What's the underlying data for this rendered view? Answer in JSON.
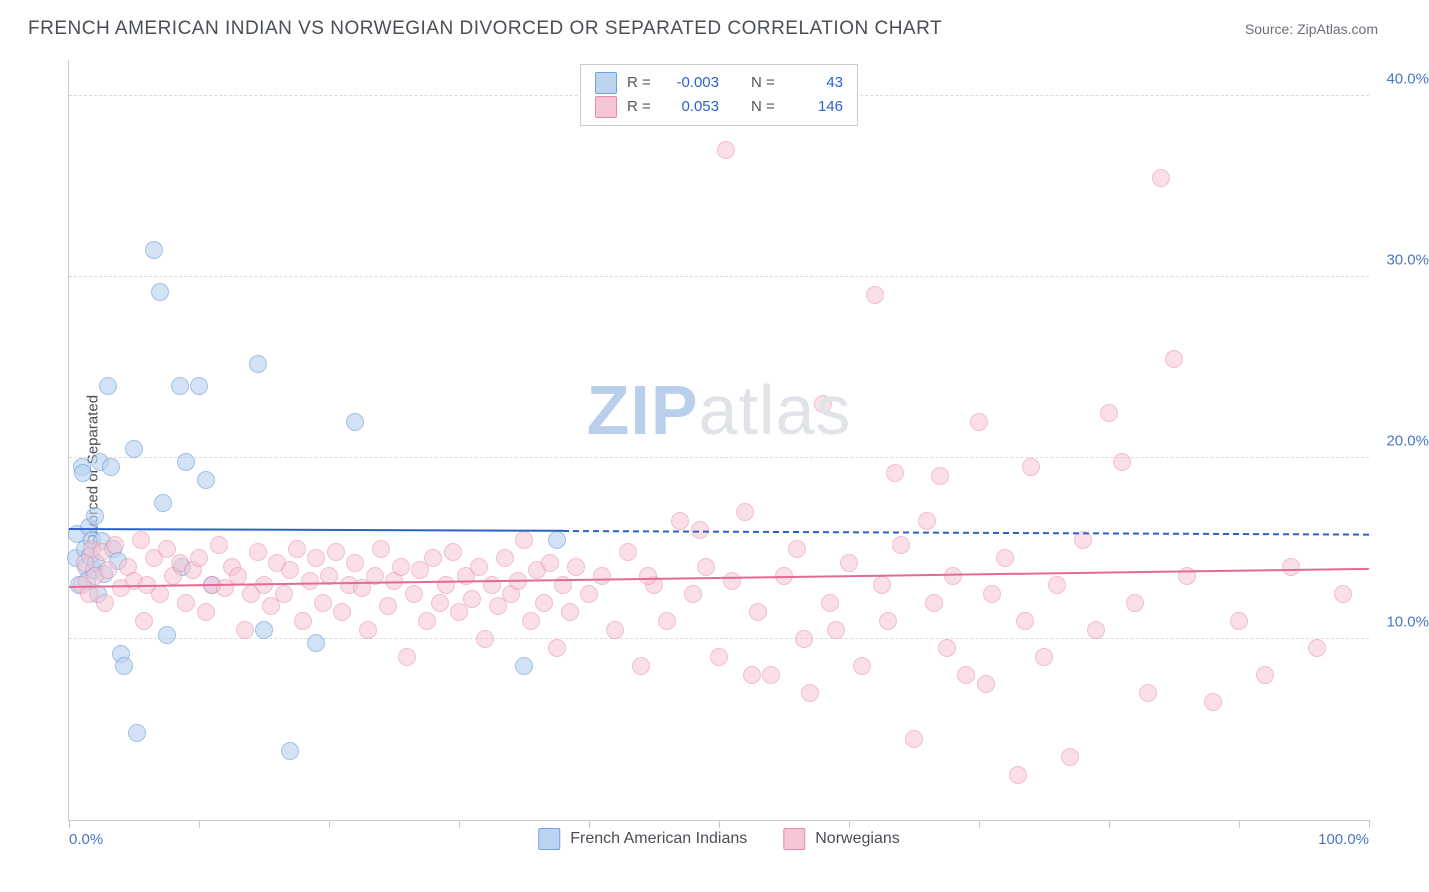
{
  "header": {
    "title": "FRENCH AMERICAN INDIAN VS NORWEGIAN DIVORCED OR SEPARATED CORRELATION CHART",
    "source_label": "Source:",
    "source_value": "ZipAtlas.com"
  },
  "chart": {
    "type": "scatter",
    "ylabel": "Divorced or Separated",
    "xlim": [
      0,
      100
    ],
    "ylim": [
      0,
      42
    ],
    "x_ticks": [
      0,
      10,
      20,
      30,
      40,
      50,
      60,
      70,
      80,
      90,
      100
    ],
    "y_ticks": [
      10,
      20,
      30,
      40
    ],
    "x_tick_labels": {
      "0": "0.0%",
      "100": "100.0%"
    },
    "y_tick_labels": {
      "10": "10.0%",
      "20": "20.0%",
      "30": "30.0%",
      "40": "40.0%"
    },
    "background_color": "#ffffff",
    "grid_color": "#d8dce2",
    "axis_color": "#c8ccd2",
    "tick_label_color": "#4a75c5",
    "marker_radius": 8,
    "watermark": {
      "part_a": "ZIP",
      "part_b": "atlas",
      "color_a": "#b9cfec",
      "color_b": "#e0e3e8"
    },
    "series": [
      {
        "id": "french_american_indians",
        "label": "French American Indians",
        "stats": {
          "R": "-0.003",
          "N": "43"
        },
        "fill": "#bcd4f0",
        "stroke": "#6fa1dd",
        "fill_opacity": 0.65,
        "trend": {
          "x1": 0,
          "y1": 16.0,
          "x2": 38,
          "y2": 15.9,
          "x2_dash": 100,
          "y2_dash": 15.7,
          "color": "#2a62c9"
        },
        "points": [
          [
            0.5,
            14.5
          ],
          [
            0.6,
            15.8
          ],
          [
            0.8,
            13.0
          ],
          [
            1.0,
            19.5
          ],
          [
            1.1,
            19.2
          ],
          [
            1.2,
            15.0
          ],
          [
            1.3,
            14.0
          ],
          [
            1.4,
            13.2
          ],
          [
            1.5,
            16.2
          ],
          [
            1.6,
            14.6
          ],
          [
            1.8,
            15.5
          ],
          [
            1.9,
            13.8
          ],
          [
            2.0,
            16.8
          ],
          [
            2.1,
            14.2
          ],
          [
            2.2,
            12.5
          ],
          [
            2.4,
            19.8
          ],
          [
            2.5,
            15.4
          ],
          [
            2.7,
            13.6
          ],
          [
            3.0,
            24.0
          ],
          [
            3.2,
            19.5
          ],
          [
            3.4,
            15.0
          ],
          [
            3.8,
            14.3
          ],
          [
            4.0,
            9.2
          ],
          [
            4.2,
            8.5
          ],
          [
            5.0,
            20.5
          ],
          [
            5.2,
            4.8
          ],
          [
            6.5,
            31.5
          ],
          [
            7.0,
            29.2
          ],
          [
            7.2,
            17.5
          ],
          [
            7.5,
            10.2
          ],
          [
            8.5,
            24.0
          ],
          [
            8.7,
            14.0
          ],
          [
            9.0,
            19.8
          ],
          [
            10.0,
            24.0
          ],
          [
            10.5,
            18.8
          ],
          [
            11.0,
            13.0
          ],
          [
            14.5,
            25.2
          ],
          [
            15.0,
            10.5
          ],
          [
            17.0,
            3.8
          ],
          [
            19.0,
            9.8
          ],
          [
            22.0,
            22.0
          ],
          [
            35.0,
            8.5
          ],
          [
            37.5,
            15.5
          ]
        ]
      },
      {
        "id": "norwegians",
        "label": "Norwegians",
        "stats": {
          "R": "0.053",
          "N": "146"
        },
        "fill": "#f6c6d4",
        "stroke": "#e88ba6",
        "fill_opacity": 0.55,
        "trend": {
          "x1": 0,
          "y1": 12.8,
          "x2": 100,
          "y2": 13.8,
          "color": "#e36b93"
        },
        "points": [
          [
            1.0,
            13.0
          ],
          [
            1.2,
            14.2
          ],
          [
            1.5,
            12.5
          ],
          [
            1.8,
            15.0
          ],
          [
            2.0,
            13.5
          ],
          [
            2.5,
            14.8
          ],
          [
            2.8,
            12.0
          ],
          [
            3.0,
            13.8
          ],
          [
            3.5,
            15.2
          ],
          [
            4.0,
            12.8
          ],
          [
            4.5,
            14.0
          ],
          [
            5.0,
            13.2
          ],
          [
            5.5,
            15.5
          ],
          [
            5.8,
            11.0
          ],
          [
            6.0,
            13.0
          ],
          [
            6.5,
            14.5
          ],
          [
            7.0,
            12.5
          ],
          [
            7.5,
            15.0
          ],
          [
            8.0,
            13.5
          ],
          [
            8.5,
            14.2
          ],
          [
            9.0,
            12.0
          ],
          [
            9.5,
            13.8
          ],
          [
            10.0,
            14.5
          ],
          [
            10.5,
            11.5
          ],
          [
            11.0,
            13.0
          ],
          [
            11.5,
            15.2
          ],
          [
            12.0,
            12.8
          ],
          [
            12.5,
            14.0
          ],
          [
            13.0,
            13.5
          ],
          [
            13.5,
            10.5
          ],
          [
            14.0,
            12.5
          ],
          [
            14.5,
            14.8
          ],
          [
            15.0,
            13.0
          ],
          [
            15.5,
            11.8
          ],
          [
            16.0,
            14.2
          ],
          [
            16.5,
            12.5
          ],
          [
            17.0,
            13.8
          ],
          [
            17.5,
            15.0
          ],
          [
            18.0,
            11.0
          ],
          [
            18.5,
            13.2
          ],
          [
            19.0,
            14.5
          ],
          [
            19.5,
            12.0
          ],
          [
            20.0,
            13.5
          ],
          [
            20.5,
            14.8
          ],
          [
            21.0,
            11.5
          ],
          [
            21.5,
            13.0
          ],
          [
            22.0,
            14.2
          ],
          [
            22.5,
            12.8
          ],
          [
            23.0,
            10.5
          ],
          [
            23.5,
            13.5
          ],
          [
            24.0,
            15.0
          ],
          [
            24.5,
            11.8
          ],
          [
            25.0,
            13.2
          ],
          [
            25.5,
            14.0
          ],
          [
            26.0,
            9.0
          ],
          [
            26.5,
            12.5
          ],
          [
            27.0,
            13.8
          ],
          [
            27.5,
            11.0
          ],
          [
            28.0,
            14.5
          ],
          [
            28.5,
            12.0
          ],
          [
            29.0,
            13.0
          ],
          [
            29.5,
            14.8
          ],
          [
            30.0,
            11.5
          ],
          [
            30.5,
            13.5
          ],
          [
            31.0,
            12.2
          ],
          [
            31.5,
            14.0
          ],
          [
            32.0,
            10.0
          ],
          [
            32.5,
            13.0
          ],
          [
            33.0,
            11.8
          ],
          [
            33.5,
            14.5
          ],
          [
            34.0,
            12.5
          ],
          [
            34.5,
            13.2
          ],
          [
            35.0,
            15.5
          ],
          [
            35.5,
            11.0
          ],
          [
            36.0,
            13.8
          ],
          [
            36.5,
            12.0
          ],
          [
            37.0,
            14.2
          ],
          [
            37.5,
            9.5
          ],
          [
            38.0,
            13.0
          ],
          [
            38.5,
            11.5
          ],
          [
            39.0,
            14.0
          ],
          [
            40.0,
            12.5
          ],
          [
            41.0,
            13.5
          ],
          [
            42.0,
            10.5
          ],
          [
            43.0,
            14.8
          ],
          [
            44.0,
            8.5
          ],
          [
            45.0,
            13.0
          ],
          [
            46.0,
            11.0
          ],
          [
            47.0,
            16.5
          ],
          [
            48.0,
            12.5
          ],
          [
            49.0,
            14.0
          ],
          [
            50.0,
            9.0
          ],
          [
            50.5,
            37.0
          ],
          [
            51.0,
            13.2
          ],
          [
            52.0,
            17.0
          ],
          [
            53.0,
            11.5
          ],
          [
            54.0,
            8.0
          ],
          [
            55.0,
            13.5
          ],
          [
            56.0,
            15.0
          ],
          [
            57.0,
            7.0
          ],
          [
            58.0,
            23.0
          ],
          [
            58.5,
            12.0
          ],
          [
            59.0,
            10.5
          ],
          [
            60.0,
            14.2
          ],
          [
            61.0,
            8.5
          ],
          [
            62.0,
            29.0
          ],
          [
            62.5,
            13.0
          ],
          [
            63.0,
            11.0
          ],
          [
            64.0,
            15.2
          ],
          [
            65.0,
            4.5
          ],
          [
            66.0,
            16.5
          ],
          [
            67.0,
            19.0
          ],
          [
            67.5,
            9.5
          ],
          [
            68.0,
            13.5
          ],
          [
            69.0,
            8.0
          ],
          [
            70.0,
            22.0
          ],
          [
            70.5,
            7.5
          ],
          [
            71.0,
            12.5
          ],
          [
            72.0,
            14.5
          ],
          [
            73.0,
            2.5
          ],
          [
            73.5,
            11.0
          ],
          [
            74.0,
            19.5
          ],
          [
            75.0,
            9.0
          ],
          [
            76.0,
            13.0
          ],
          [
            77.0,
            3.5
          ],
          [
            78.0,
            15.5
          ],
          [
            79.0,
            10.5
          ],
          [
            80.0,
            22.5
          ],
          [
            81.0,
            19.8
          ],
          [
            82.0,
            12.0
          ],
          [
            83.0,
            7.0
          ],
          [
            84.0,
            35.5
          ],
          [
            85.0,
            25.5
          ],
          [
            86.0,
            13.5
          ],
          [
            88.0,
            6.5
          ],
          [
            90.0,
            11.0
          ],
          [
            92.0,
            8.0
          ],
          [
            94.0,
            14.0
          ],
          [
            96.0,
            9.5
          ],
          [
            98.0,
            12.5
          ],
          [
            63.5,
            19.2
          ],
          [
            66.5,
            12.0
          ],
          [
            52.5,
            8.0
          ],
          [
            44.5,
            13.5
          ],
          [
            48.5,
            16.0
          ],
          [
            56.5,
            10.0
          ]
        ]
      }
    ],
    "legend_top": {
      "r_label": "R =",
      "n_label": "N ="
    }
  }
}
